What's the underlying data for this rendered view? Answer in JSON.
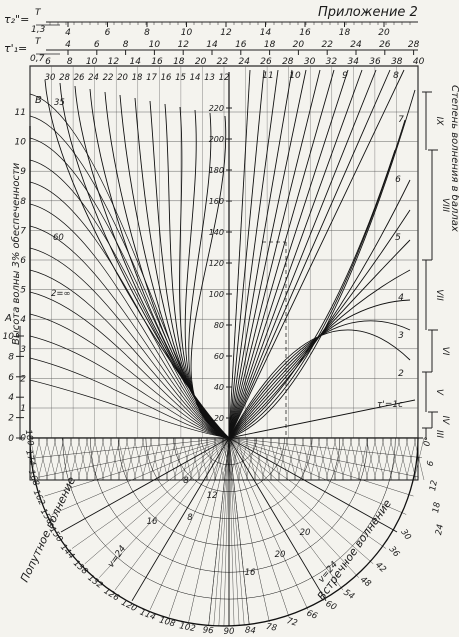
{
  "header": {
    "appendix_label": "Приложение 2"
  },
  "scales": {
    "tau2": {
      "label": "τ₂\"=",
      "num": "T",
      "den": "1,3",
      "ticks": [
        "4",
        "6",
        "8",
        "10",
        "12",
        "14",
        "16",
        "18",
        "20"
      ]
    },
    "tau1": {
      "label": "τ'₁=",
      "num": "T",
      "den": "0,7",
      "ticks": [
        "4",
        "6",
        "8",
        "10",
        "12",
        "14",
        "16",
        "18",
        "20",
        "22",
        "24",
        "26",
        "28"
      ]
    },
    "top_row": [
      "6",
      "8",
      "10",
      "12",
      "14",
      "16",
      "18",
      "20",
      "22",
      "24",
      "26",
      "28",
      "30",
      "32",
      "34",
      "36",
      "38",
      "40"
    ]
  },
  "left_axis": {
    "title": "Высота волны 3% обеспеченности",
    "upper_unit": "B",
    "upper_ticks": [
      "11",
      "10",
      "9",
      "8",
      "7",
      "6",
      "5",
      "4",
      "3",
      "2",
      "1",
      "0"
    ],
    "lower_unit": "A",
    "lower_ticks": [
      "10",
      "8",
      "6",
      "4",
      "2",
      "0"
    ]
  },
  "curve_labels_left": [
    "30",
    "28",
    "26",
    "24",
    "22",
    "20",
    "18",
    "17",
    "16",
    "15",
    "14",
    "13",
    "12"
  ],
  "curve_labels_right": [
    "11",
    "10",
    "9",
    "8",
    "7",
    "6",
    "5",
    "4",
    "3",
    "2"
  ],
  "tau_c_label": "τ'=1с",
  "marks_left": [
    "35",
    "60",
    "2=∞"
  ],
  "center_scale": [
    "220",
    "200",
    "180",
    "160",
    "140",
    "120",
    "100",
    "80",
    "60",
    "40",
    "20"
  ],
  "right_axis": {
    "title": "Степень волнения в баллах",
    "grades": [
      "IX",
      "VIII",
      "VII",
      "VI",
      "V",
      "IV",
      "III"
    ],
    "right_edge": [
      "0°",
      "6",
      "12",
      "18",
      "24"
    ]
  },
  "bottom": {
    "left_numbers": [
      "180",
      "174",
      "168",
      "162",
      "156",
      "150",
      "144",
      "138",
      "132",
      "126",
      "120",
      "114",
      "108",
      "102",
      "96"
    ],
    "right_numbers": [
      "90",
      "84",
      "78",
      "72",
      "66",
      "60",
      "54",
      "48",
      "42",
      "36",
      "30"
    ],
    "left_title": "Попутное волнение",
    "right_title": "Встречное волнение",
    "v_left": "v=24",
    "v_right": "v=24",
    "inner_speeds": [
      "8",
      "16",
      "20",
      "20",
      "16",
      "8",
      "12"
    ]
  }
}
